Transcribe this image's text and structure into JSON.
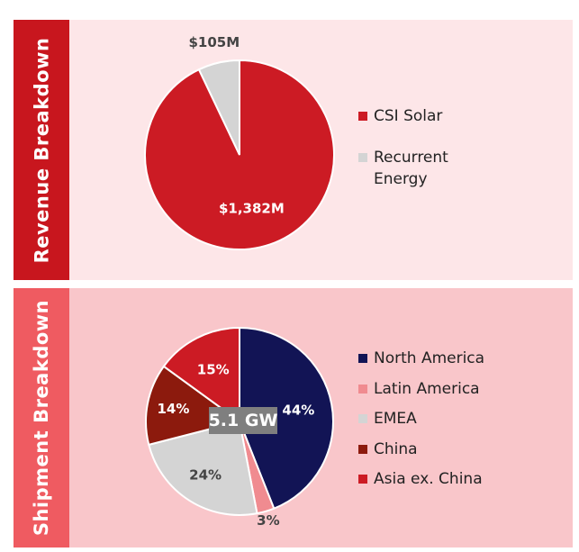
{
  "chart_data": [
    {
      "type": "pie",
      "title": "Revenue Breakdown",
      "categories": [
        "CSI Solar",
        "Recurrent Energy"
      ],
      "values": [
        1382,
        105
      ],
      "labels": [
        "$1,382M",
        "$105M"
      ],
      "colors": [
        "#cc1b24",
        "#d4d4d4"
      ]
    },
    {
      "type": "pie",
      "title": "Shipment Breakdown",
      "center_label": "5.1 GW",
      "categories": [
        "North America",
        "Latin America",
        "EMEA",
        "China",
        "Asia ex. China"
      ],
      "values": [
        44,
        3,
        24,
        14,
        15
      ],
      "labels": [
        "44%",
        "3%",
        "24%",
        "14%",
        "15%"
      ],
      "colors": [
        "#121455",
        "#f08b90",
        "#d4d4d4",
        "#8c1a0d",
        "#cc1b24"
      ]
    }
  ]
}
